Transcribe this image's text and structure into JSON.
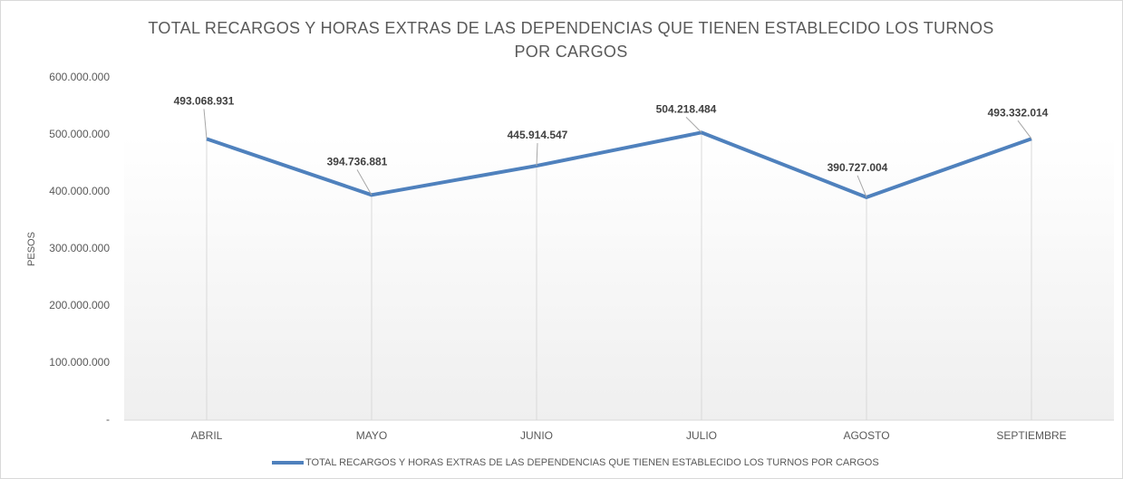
{
  "chart_data": {
    "type": "line",
    "title": "TOTAL RECARGOS Y HORAS EXTRAS DE LAS DEPENDENCIAS QUE TIENEN ESTABLECIDO LOS TURNOS POR CARGOS",
    "y_label": "PESOS",
    "categories": [
      "ABRIL",
      "MAYO",
      "JUNIO",
      "JULIO",
      "AGOSTO",
      "SEPTIEMBRE"
    ],
    "series": [
      {
        "name": "TOTAL RECARGOS Y HORAS EXTRAS DE LAS DEPENDENCIAS QUE TIENEN ESTABLECIDO LOS TURNOS POR CARGOS",
        "color": "#4f81bd",
        "values": [
          493068931,
          394736881,
          445914547,
          504218484,
          390727004,
          493332014
        ],
        "value_labels": [
          "493.068.931",
          "394.736.881",
          "445.914.547",
          "504.218.484",
          "390.727.004",
          "493.332.014"
        ]
      }
    ],
    "ylim": [
      0,
      600000000
    ],
    "yticks": [
      {
        "value": 0,
        "label": "-"
      },
      {
        "value": 100000000,
        "label": "100.000.000"
      },
      {
        "value": 200000000,
        "label": "200.000.000"
      },
      {
        "value": 300000000,
        "label": "300.000.000"
      },
      {
        "value": 400000000,
        "label": "400.000.000"
      },
      {
        "value": 500000000,
        "label": "500.000.000"
      },
      {
        "value": 600000000,
        "label": "600.000.000"
      }
    ],
    "legend": "bottom"
  }
}
